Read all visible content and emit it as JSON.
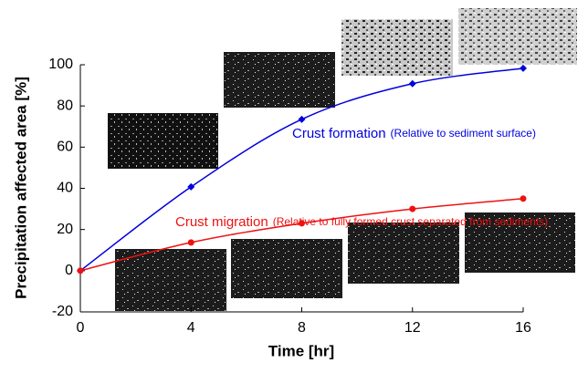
{
  "chart_data": {
    "type": "line",
    "x_label": "Time [hr]",
    "y_label": "Precipitation affected area [%]",
    "x": [
      0,
      4,
      8,
      12,
      16
    ],
    "series": [
      {
        "name": "Crust formation",
        "note": "(Relative to sediment surface)",
        "color": "#0000dd",
        "marker": "diamond",
        "values": [
          0,
          40.7,
          73.5,
          90.8,
          98.3
        ]
      },
      {
        "name": "Crust migration",
        "note": "(Relative to fully formed crust separated from sediments)",
        "color": "#ee1111",
        "marker": "circle",
        "values": [
          0,
          13.7,
          23,
          30,
          35
        ]
      }
    ],
    "xlim": [
      0,
      16
    ],
    "xticks": [
      0,
      4,
      8,
      12,
      16
    ],
    "ylim": [
      -20,
      100
    ],
    "yticks": [
      -20,
      0,
      20,
      40,
      60,
      80,
      100
    ],
    "grid": false
  }
}
